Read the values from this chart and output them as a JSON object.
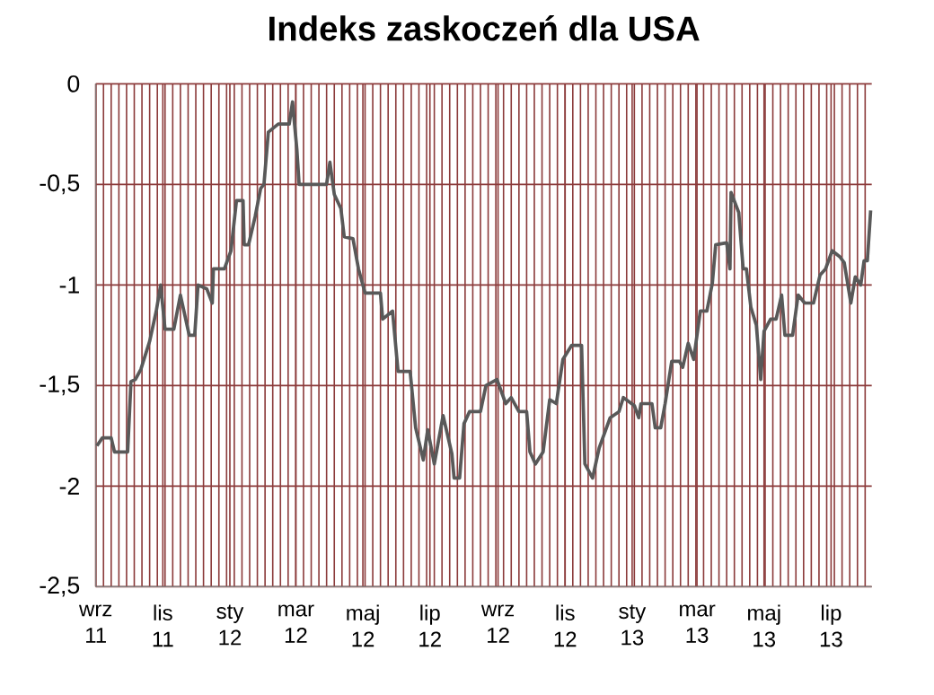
{
  "chart_data": {
    "type": "line",
    "title": "Indeks zaskoczeń dla USA",
    "x": [
      "2011-09-02",
      "2011-09-07",
      "2011-09-15",
      "2011-09-18",
      "2011-09-30",
      "2011-10-03",
      "2011-10-07",
      "2011-10-12",
      "2011-10-20",
      "2011-10-26",
      "2011-10-30",
      "2011-11-03",
      "2011-11-11",
      "2011-11-17",
      "2011-11-25",
      "2011-11-30",
      "2011-12-03",
      "2011-12-11",
      "2011-12-16",
      "2011-12-17",
      "2011-12-27",
      "2012-01-02",
      "2012-01-07",
      "2012-01-13",
      "2012-01-14",
      "2012-01-18",
      "2012-01-24",
      "2012-01-29",
      "2012-02-01",
      "2012-02-05",
      "2012-02-14",
      "2012-02-24",
      "2012-02-27",
      "2012-03-02",
      "2012-03-04",
      "2012-03-29",
      "2012-04-01",
      "2012-04-05",
      "2012-04-11",
      "2012-04-14",
      "2012-04-22",
      "2012-04-27",
      "2012-05-03",
      "2012-05-17",
      "2012-05-19",
      "2012-05-28",
      "2012-06-02",
      "2012-06-13",
      "2012-06-18",
      "2012-06-25",
      "2012-06-29",
      "2012-07-05",
      "2012-07-13",
      "2012-07-21",
      "2012-07-23",
      "2012-07-28",
      "2012-08-01",
      "2012-08-06",
      "2012-08-16",
      "2012-08-21",
      "2012-08-31",
      "2012-09-08",
      "2012-09-13",
      "2012-09-20",
      "2012-09-27",
      "2012-09-30",
      "2012-10-05",
      "2012-10-12",
      "2012-10-18",
      "2012-10-24",
      "2012-10-30",
      "2012-11-07",
      "2012-11-16",
      "2012-11-19",
      "2012-11-26",
      "2012-12-02",
      "2012-12-12",
      "2012-12-20",
      "2012-12-24",
      "2013-01-03",
      "2013-01-07",
      "2013-01-09",
      "2013-01-19",
      "2013-01-22",
      "2013-01-27",
      "2013-01-31",
      "2013-02-06",
      "2013-02-13",
      "2013-02-16",
      "2013-02-21",
      "2013-02-26",
      "2013-03-04",
      "2013-03-10",
      "2013-03-15",
      "2013-03-18",
      "2013-03-28",
      "2013-03-31",
      "2013-04-01",
      "2013-04-08",
      "2013-04-12",
      "2013-04-15",
      "2013-04-19",
      "2013-04-24",
      "2013-04-28",
      "2013-05-01",
      "2013-05-07",
      "2013-05-12",
      "2013-05-17",
      "2013-05-20",
      "2013-05-27",
      "2013-06-01",
      "2013-06-07",
      "2013-06-15",
      "2013-06-21",
      "2013-06-26",
      "2013-07-02",
      "2013-07-09",
      "2013-07-13",
      "2013-07-19",
      "2013-07-23",
      "2013-07-28",
      "2013-07-31",
      "2013-08-03",
      "2013-08-06"
    ],
    "series": [
      {
        "color": "#595959",
        "values": [
          -1.8,
          -1.76,
          -1.76,
          -1.83,
          -1.83,
          -1.48,
          -1.47,
          -1.42,
          -1.28,
          -1.13,
          -1.0,
          -1.22,
          -1.22,
          -1.05,
          -1.25,
          -1.25,
          -1.0,
          -1.02,
          -1.09,
          -0.92,
          -0.92,
          -0.83,
          -0.58,
          -0.58,
          -0.8,
          -0.8,
          -0.66,
          -0.52,
          -0.5,
          -0.24,
          -0.2,
          -0.2,
          -0.09,
          -0.33,
          -0.5,
          -0.5,
          -0.39,
          -0.55,
          -0.62,
          -0.76,
          -0.77,
          -0.92,
          -1.04,
          -1.04,
          -1.17,
          -1.13,
          -1.43,
          -1.43,
          -1.71,
          -1.87,
          -1.72,
          -1.89,
          -1.65,
          -1.84,
          -1.96,
          -1.96,
          -1.69,
          -1.63,
          -1.63,
          -1.5,
          -1.47,
          -1.59,
          -1.56,
          -1.63,
          -1.63,
          -1.83,
          -1.89,
          -1.83,
          -1.57,
          -1.59,
          -1.37,
          -1.3,
          -1.3,
          -1.89,
          -1.96,
          -1.81,
          -1.66,
          -1.63,
          -1.56,
          -1.6,
          -1.66,
          -1.59,
          -1.59,
          -1.71,
          -1.71,
          -1.59,
          -1.38,
          -1.38,
          -1.41,
          -1.29,
          -1.37,
          -1.13,
          -1.13,
          -0.99,
          -0.8,
          -0.79,
          -0.92,
          -0.54,
          -0.64,
          -0.92,
          -0.92,
          -1.11,
          -1.2,
          -1.47,
          -1.23,
          -1.17,
          -1.17,
          -1.05,
          -1.25,
          -1.25,
          -1.05,
          -1.09,
          -1.09,
          -0.95,
          -0.92,
          -0.83,
          -0.86,
          -0.89,
          -1.09,
          -0.96,
          -1.0,
          -0.88,
          -0.88,
          -0.63
        ]
      }
    ],
    "xlim": [
      "2011-09-01",
      "2013-08-07"
    ],
    "xticks": [
      {
        "value": "2011-09-01",
        "label": "wrz 11"
      },
      {
        "value": "2011-11-01",
        "label": "lis 11"
      },
      {
        "value": "2012-01-01",
        "label": "sty 12"
      },
      {
        "value": "2012-03-01",
        "label": "mar 12"
      },
      {
        "value": "2012-05-01",
        "label": "maj 12"
      },
      {
        "value": "2012-07-01",
        "label": "lip 12"
      },
      {
        "value": "2012-09-01",
        "label": "wrz 12"
      },
      {
        "value": "2012-11-01",
        "label": "lis 12"
      },
      {
        "value": "2013-01-01",
        "label": "sty 13"
      },
      {
        "value": "2013-03-01",
        "label": "mar 13"
      },
      {
        "value": "2013-05-01",
        "label": "maj 13"
      },
      {
        "value": "2013-07-01",
        "label": "lip 13"
      }
    ],
    "ylim": [
      -2.5,
      0
    ],
    "yticks": [
      {
        "value": 0,
        "label": "0"
      },
      {
        "value": -0.5,
        "label": "-0,5"
      },
      {
        "value": -1,
        "label": "-1"
      },
      {
        "value": -1.5,
        "label": "-1,5"
      },
      {
        "value": -2,
        "label": "-2"
      },
      {
        "value": -2.5,
        "label": "-2,5"
      }
    ],
    "grid": true,
    "marker": "none",
    "line_style": "solid"
  }
}
